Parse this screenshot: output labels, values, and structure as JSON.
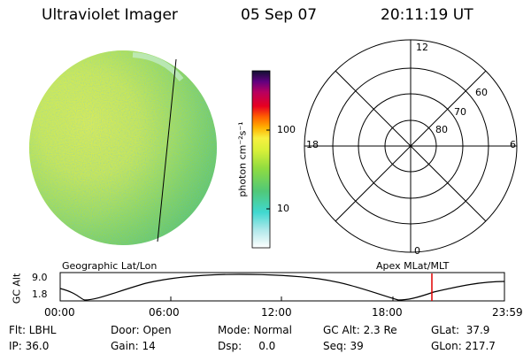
{
  "header": {
    "instrument": "Ultraviolet Imager",
    "date": "05 Sep 07",
    "time": "20:11:19 UT"
  },
  "colorbar": {
    "unit_label": "photon cm⁻²s⁻¹",
    "ticks": [
      {
        "label": "100",
        "value": 100
      },
      {
        "label": "10",
        "value": 10
      }
    ]
  },
  "polar_plot": {
    "mlt_labels": {
      "top": "12",
      "left": "18",
      "right": "6",
      "bottom": "0"
    },
    "lat_labels": [
      "60",
      "70",
      "80"
    ]
  },
  "timeline": {
    "left_title": "Geographic Lat/Lon",
    "right_title": "Apex MLat/MLT",
    "ylabel": "GC Alt",
    "y_ticks": [
      "9.0",
      "1.8"
    ],
    "x_ticks": [
      "00:00",
      "06:00",
      "12:00",
      "18:00",
      "23:59"
    ],
    "current_time_marker": "20:11"
  },
  "info": {
    "flt": "Flt: LBHL",
    "door": "Door: Open",
    "mode": "Mode: Normal",
    "gc_alt": "GC Alt: 2.3 Re",
    "glat": "GLat:  37.9",
    "ip": "IP: 36.0",
    "gain": "Gain: 14",
    "dsp": "Dsp:     0.0",
    "seq": "Seq: 39",
    "glon": "GLon: 217.7"
  },
  "colors": {
    "marker": "#e00000",
    "disk_yellow": "#e6f23a",
    "disk_green": "#7ed05a"
  }
}
